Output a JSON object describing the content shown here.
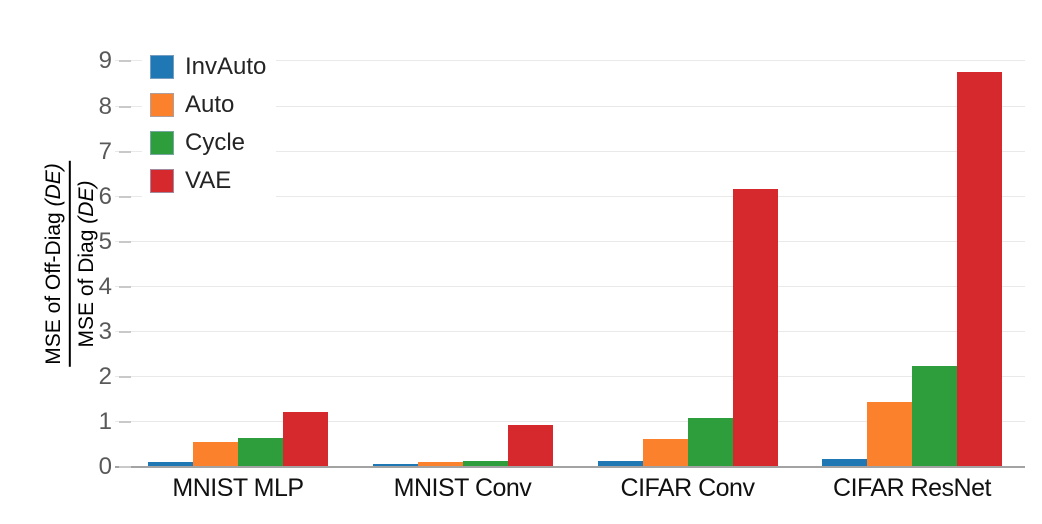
{
  "chart_data": {
    "type": "bar",
    "categories": [
      "MNIST MLP",
      "MNIST Conv",
      "CIFAR Conv",
      "CIFAR ResNet"
    ],
    "series": [
      {
        "name": "InvAuto",
        "color": "#1f77b4",
        "values": [
          0.12,
          0.06,
          0.13,
          0.17
        ]
      },
      {
        "name": "Auto",
        "color": "#fb812c",
        "values": [
          0.55,
          0.12,
          0.62,
          1.45
        ]
      },
      {
        "name": "Cycle",
        "color": "#2e9e3c",
        "values": [
          0.65,
          0.13,
          1.08,
          2.24
        ]
      },
      {
        "name": "VAE",
        "color": "#d5292d",
        "values": [
          1.21,
          0.93,
          6.16,
          8.76
        ]
      }
    ],
    "title": "",
    "xlabel": "",
    "ylabel": {
      "numerator": {
        "text": "MSE of Off-Diag",
        "suffix": "(DE)"
      },
      "denominator": {
        "text": "MSE of Diag",
        "suffix": "(DE)"
      }
    },
    "yticks": [
      0,
      1,
      2,
      3,
      4,
      5,
      6,
      7,
      8,
      9
    ],
    "ylim": [
      0,
      9.5
    ],
    "grid": true,
    "legend_position": "upper-left"
  }
}
